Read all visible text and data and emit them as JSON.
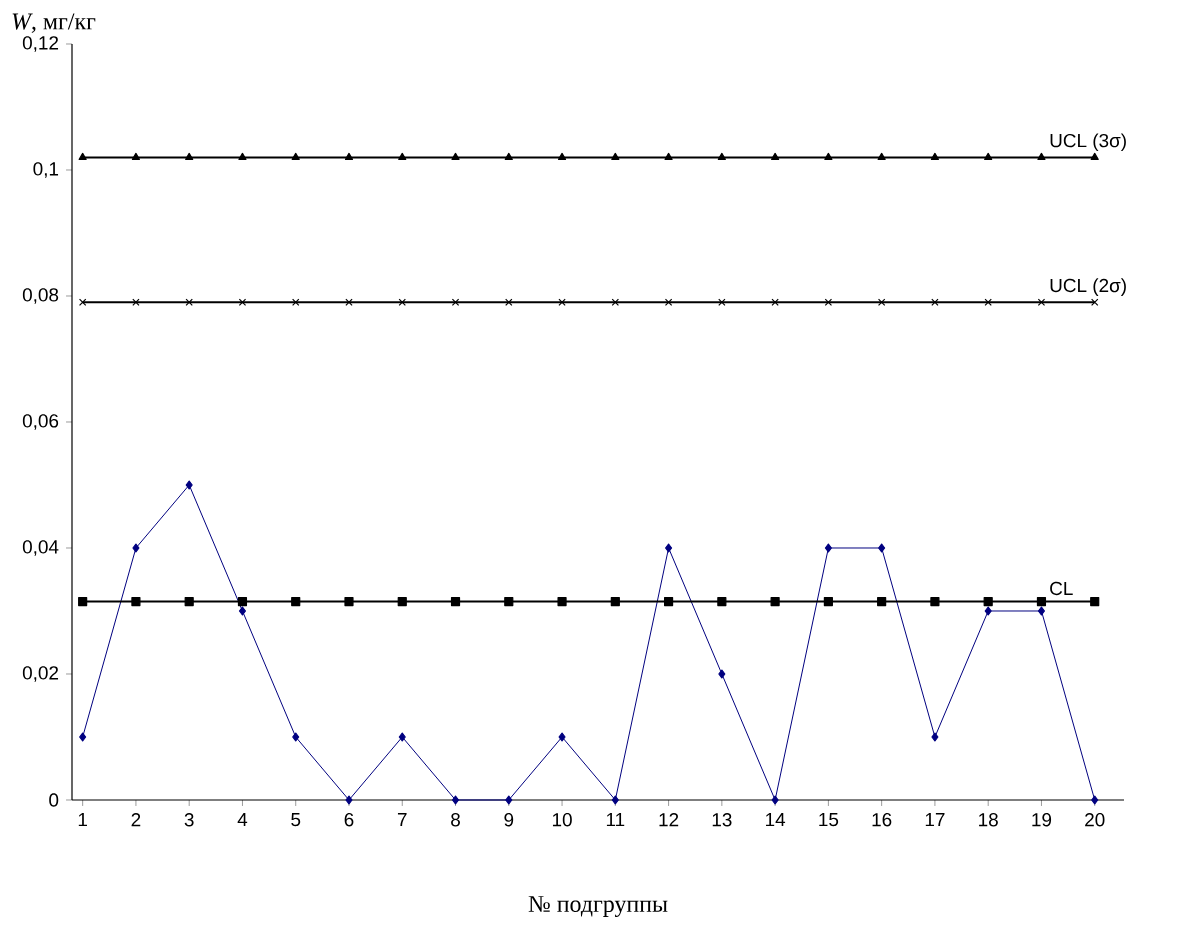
{
  "chart_data": {
    "type": "line",
    "xlabel": "№ подгруппы",
    "ylabel": "*W*, мг/кг",
    "categories": [
      "1",
      "2",
      "3",
      "4",
      "5",
      "6",
      "7",
      "8",
      "9",
      "10",
      "11",
      "12",
      "13",
      "14",
      "15",
      "16",
      "17",
      "18",
      "19",
      "20"
    ],
    "series": [
      {
        "color": "#000080",
        "marker": "diamond",
        "values": [
          0.01,
          0.04,
          0.05,
          0.03,
          0.01,
          0,
          0.01,
          0,
          0,
          0.01,
          0,
          0.04,
          0.02,
          0,
          0.04,
          0.04,
          0.01,
          0.03,
          0.03,
          0
        ]
      },
      {
        "name": "CL",
        "color": "#000000",
        "marker": "square",
        "values": [
          0.0315,
          0.0315,
          0.0315,
          0.0315,
          0.0315,
          0.0315,
          0.0315,
          0.0315,
          0.0315,
          0.0315,
          0.0315,
          0.0315,
          0.0315,
          0.0315,
          0.0315,
          0.0315,
          0.0315,
          0.0315,
          0.0315,
          0.0315
        ]
      },
      {
        "name": "UCL (2σ)",
        "color": "#000000",
        "marker": "cross",
        "values": [
          0.079,
          0.079,
          0.079,
          0.079,
          0.079,
          0.079,
          0.079,
          0.079,
          0.079,
          0.079,
          0.079,
          0.079,
          0.079,
          0.079,
          0.079,
          0.079,
          0.079,
          0.079,
          0.079,
          0.079
        ]
      },
      {
        "name": "UCL (3σ)",
        "color": "#000000",
        "marker": "triangle",
        "values": [
          0.102,
          0.102,
          0.102,
          0.102,
          0.102,
          0.102,
          0.102,
          0.102,
          0.102,
          0.102,
          0.102,
          0.102,
          0.102,
          0.102,
          0.102,
          0.102,
          0.102,
          0.102,
          0.102,
          0.102
        ]
      }
    ],
    "ylim": [
      0,
      0.12
    ],
    "yticks": [
      {
        "value": 0,
        "label": "0"
      },
      {
        "value": 0.02,
        "label": "0,02"
      },
      {
        "value": 0.04,
        "label": "0,04"
      },
      {
        "value": 0.06,
        "label": "0,06"
      },
      {
        "value": 0.08,
        "label": "0,08"
      },
      {
        "value": 0.1,
        "label": "0,1"
      },
      {
        "value": 0.12,
        "label": "0,12"
      }
    ],
    "grid": false,
    "legend": false,
    "line_style": "solid"
  }
}
